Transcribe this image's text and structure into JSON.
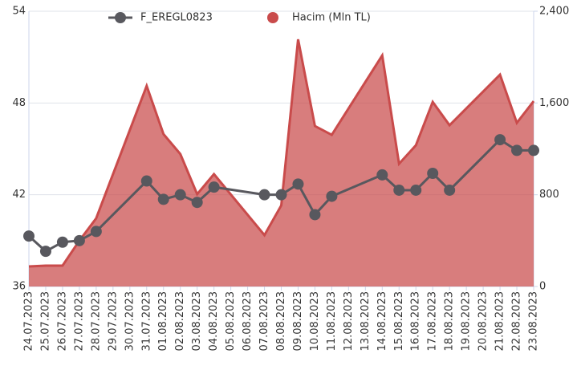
{
  "chart_data": {
    "type": "line-area",
    "categories": [
      "24.07.2023",
      "25.07.2023",
      "26.07.2023",
      "27.07.2023",
      "28.07.2023",
      "29.07.2023",
      "30.07.2023",
      "31.07.2023",
      "01.08.2023",
      "02.08.2023",
      "03.08.2023",
      "04.08.2023",
      "05.08.2023",
      "06.08.2023",
      "07.08.2023",
      "08.08.2023",
      "09.08.2023",
      "10.08.2023",
      "11.08.2023",
      "12.08.2023",
      "13.08.2023",
      "14.08.2023",
      "15.08.2023",
      "16.08.2023",
      "17.08.2023",
      "18.08.2023",
      "19.08.2023",
      "20.08.2023",
      "21.08.2023",
      "22.08.2023",
      "23.08.2023"
    ],
    "x": [
      "24.07.2023",
      "25.07.2023",
      "26.07.2023",
      "27.07.2023",
      "28.07.2023",
      "31.07.2023",
      "01.08.2023",
      "02.08.2023",
      "03.08.2023",
      "04.08.2023",
      "07.08.2023",
      "08.08.2023",
      "09.08.2023",
      "10.08.2023",
      "11.08.2023",
      "14.08.2023",
      "15.08.2023",
      "16.08.2023",
      "17.08.2023",
      "18.08.2023",
      "21.08.2023",
      "22.08.2023",
      "23.08.2023"
    ],
    "series": [
      {
        "name": "F_EREGL0823",
        "kind": "line",
        "color": "#58585e",
        "values": [
          39.3,
          38.3,
          38.9,
          39.0,
          39.6,
          42.9,
          41.7,
          42.0,
          41.5,
          42.5,
          42.0,
          42.0,
          42.7,
          40.7,
          41.9,
          43.3,
          42.3,
          42.3,
          43.4,
          42.3,
          45.6,
          44.9,
          44.9
        ]
      },
      {
        "name": "Hacim (Mln TL)",
        "kind": "area",
        "axis": "y2",
        "color": "#c94b4b",
        "values": [
          175,
          182,
          182,
          400,
          595,
          1749,
          1329,
          1155,
          805,
          980,
          448,
          707,
          2155,
          1399,
          1322,
          2015,
          1070,
          1231,
          1609,
          1406,
          1847,
          1427,
          1616
        ]
      }
    ],
    "ylim": [
      36,
      54
    ],
    "yticks": [
      36,
      42,
      48,
      54
    ],
    "y2lim": [
      0,
      2400
    ],
    "y2ticks": [
      0,
      800,
      {
        "value": 1600,
        "label": "1,600"
      },
      {
        "value": 2400,
        "label": "2,400"
      }
    ],
    "grid": true,
    "legend": "top"
  }
}
